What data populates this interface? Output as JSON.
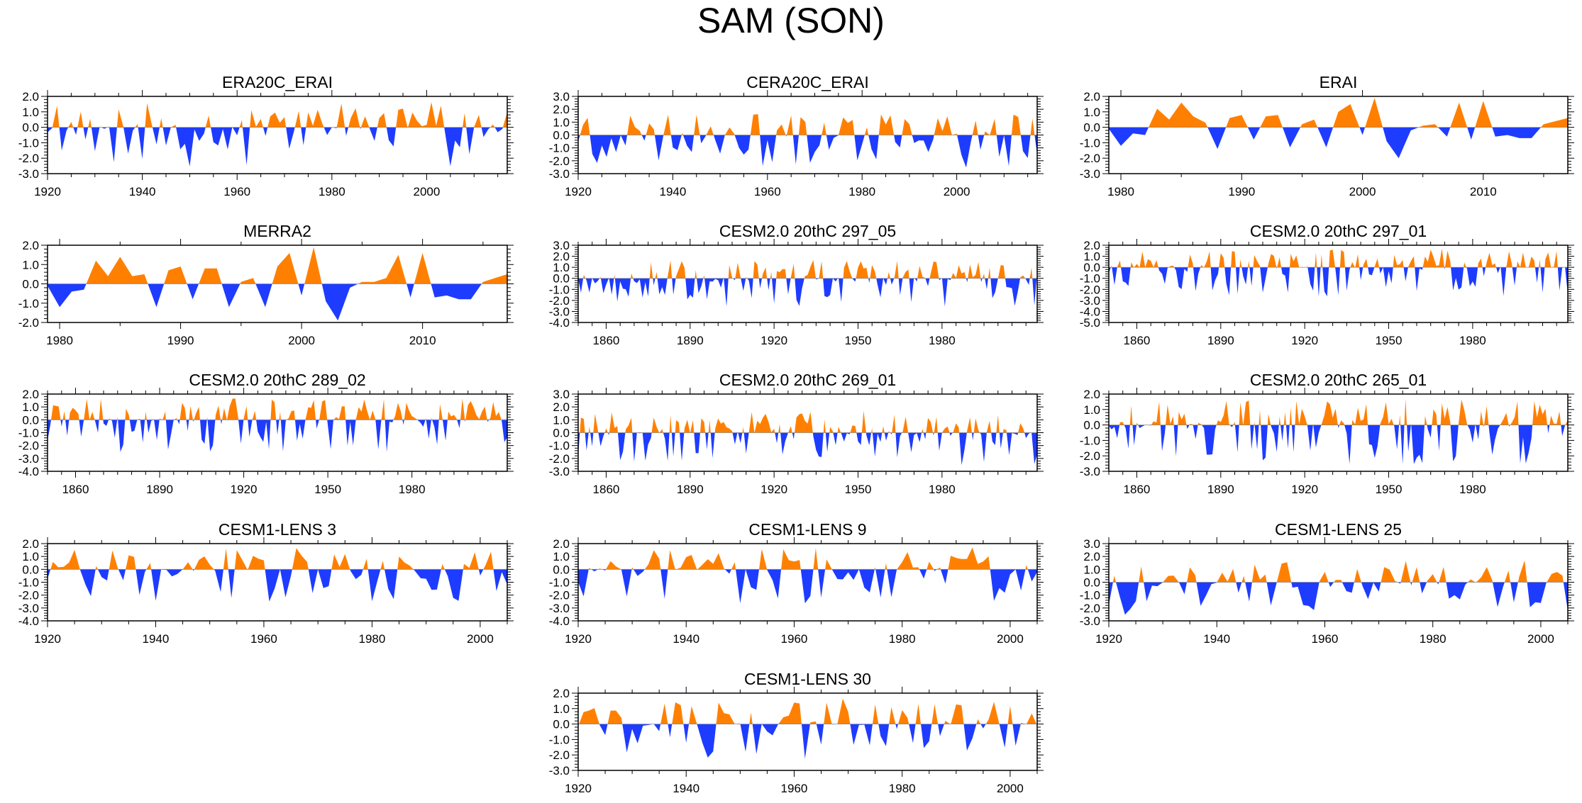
{
  "title": "SAM (SON)",
  "colors": {
    "positive": "#FF8000",
    "negative": "#1E3CFF",
    "frame": "#000000"
  },
  "chart_data": [
    {
      "type": "area",
      "title": "ERA20C_ERAI",
      "xlim": [
        1920,
        2017
      ],
      "ylim": [
        -3.0,
        2.0
      ],
      "yticks": [
        2.0,
        1.0,
        0.0,
        -1.0,
        -2.0,
        -3.0
      ],
      "xticks": [
        1920,
        1940,
        1960,
        1980,
        2000
      ],
      "seed": 11
    },
    {
      "type": "area",
      "title": "CERA20C_ERAI",
      "xlim": [
        1920,
        2017
      ],
      "ylim": [
        -3.0,
        3.0
      ],
      "yticks": [
        3.0,
        2.0,
        1.0,
        0.0,
        -1.0,
        -2.0,
        -3.0
      ],
      "xticks": [
        1920,
        1940,
        1960,
        1980,
        2000
      ],
      "seed": 23
    },
    {
      "type": "area",
      "title": "ERAI",
      "xlim": [
        1979,
        2017
      ],
      "ylim": [
        -3.0,
        2.0
      ],
      "yticks": [
        2.0,
        1.0,
        0.0,
        -1.0,
        -2.0,
        -3.0
      ],
      "xticks": [
        1980,
        1990,
        2000,
        2010
      ],
      "seed": 37,
      "x": [
        1979,
        1980,
        1981,
        1982,
        1983,
        1984,
        1985,
        1986,
        1987,
        1988,
        1989,
        1990,
        1991,
        1992,
        1993,
        1994,
        1995,
        1996,
        1997,
        1998,
        1999,
        2000,
        2001,
        2002,
        2003,
        2004,
        2005,
        2006,
        2007,
        2008,
        2009,
        2010,
        2011,
        2012,
        2013,
        2014,
        2015,
        2016,
        2017
      ],
      "values": [
        -0.1,
        -1.2,
        -0.4,
        -0.5,
        1.2,
        0.5,
        1.6,
        0.7,
        0.3,
        -1.4,
        0.6,
        0.8,
        -0.8,
        0.7,
        0.8,
        -1.3,
        0.2,
        0.5,
        -1.3,
        1.0,
        1.5,
        -0.5,
        1.9,
        -0.9,
        -2.0,
        -0.2,
        0.1,
        0.2,
        -0.6,
        1.6,
        -0.8,
        1.7,
        -0.6,
        -0.5,
        -0.7,
        -0.7,
        0.2,
        0.4,
        0.6
      ]
    },
    {
      "type": "area",
      "title": "MERRA2",
      "xlim": [
        1979,
        2017
      ],
      "ylim": [
        -2.0,
        2.0
      ],
      "yticks": [
        2.0,
        1.0,
        0.0,
        -1.0,
        -2.0
      ],
      "xticks": [
        1980,
        1990,
        2000,
        2010
      ],
      "seed": 41,
      "x": [
        1979,
        1980,
        1981,
        1982,
        1983,
        1984,
        1985,
        1986,
        1987,
        1988,
        1989,
        1990,
        1991,
        1992,
        1993,
        1994,
        1995,
        1996,
        1997,
        1998,
        1999,
        2000,
        2001,
        2002,
        2003,
        2004,
        2005,
        2006,
        2007,
        2008,
        2009,
        2010,
        2011,
        2012,
        2013,
        2014,
        2015,
        2016,
        2017
      ],
      "values": [
        -0.1,
        -1.2,
        -0.4,
        -0.3,
        1.2,
        0.4,
        1.4,
        0.4,
        0.5,
        -1.2,
        0.7,
        0.9,
        -0.8,
        0.8,
        0.8,
        -1.2,
        0.1,
        0.3,
        -1.2,
        0.9,
        1.6,
        -0.6,
        1.9,
        -0.9,
        -1.9,
        -0.2,
        0.1,
        0.1,
        0.3,
        1.5,
        -0.7,
        1.6,
        -0.7,
        -0.6,
        -0.8,
        -0.8,
        0.1,
        0.3,
        0.5
      ]
    },
    {
      "type": "area",
      "title": "CESM2.0 20thC 297_05",
      "xlim": [
        1850,
        2014
      ],
      "ylim": [
        -4.0,
        3.0
      ],
      "yticks": [
        3.0,
        2.0,
        1.0,
        0.0,
        -1.0,
        -2.0,
        -3.0,
        -4.0
      ],
      "xticks": [
        1860,
        1890,
        1920,
        1950,
        1980
      ],
      "seed": 53
    },
    {
      "type": "area",
      "title": "CESM2.0 20thC 297_01",
      "xlim": [
        1850,
        2014
      ],
      "ylim": [
        -5.0,
        2.0
      ],
      "yticks": [
        2.0,
        1.0,
        0.0,
        -1.0,
        -2.0,
        -3.0,
        -4.0,
        -5.0
      ],
      "xticks": [
        1860,
        1890,
        1920,
        1950,
        1980
      ],
      "seed": 67
    },
    {
      "type": "area",
      "title": "CESM2.0 20thC 289_02",
      "xlim": [
        1850,
        2014
      ],
      "ylim": [
        -4.0,
        2.0
      ],
      "yticks": [
        2.0,
        1.0,
        0.0,
        -1.0,
        -2.0,
        -3.0,
        -4.0
      ],
      "xticks": [
        1860,
        1890,
        1920,
        1950,
        1980
      ],
      "seed": 71
    },
    {
      "type": "area",
      "title": "CESM2.0 20thC 269_01",
      "xlim": [
        1850,
        2014
      ],
      "ylim": [
        -3.0,
        3.0
      ],
      "yticks": [
        3.0,
        2.0,
        1.0,
        0.0,
        -1.0,
        -2.0,
        -3.0
      ],
      "xticks": [
        1860,
        1890,
        1920,
        1950,
        1980
      ],
      "seed": 83
    },
    {
      "type": "area",
      "title": "CESM2.0 20thC 265_01",
      "xlim": [
        1850,
        2014
      ],
      "ylim": [
        -3.0,
        2.0
      ],
      "yticks": [
        2.0,
        1.0,
        0.0,
        -1.0,
        -2.0,
        -3.0
      ],
      "xticks": [
        1860,
        1890,
        1920,
        1950,
        1980
      ],
      "seed": 97
    },
    {
      "type": "area",
      "title": "CESM1-LENS 3",
      "xlim": [
        1920,
        2005
      ],
      "ylim": [
        -4.0,
        2.0
      ],
      "yticks": [
        2.0,
        1.0,
        0.0,
        -1.0,
        -2.0,
        -3.0,
        -4.0
      ],
      "xticks": [
        1920,
        1940,
        1960,
        1980,
        2000
      ],
      "seed": 101
    },
    {
      "type": "area",
      "title": "CESM1-LENS 9",
      "xlim": [
        1920,
        2005
      ],
      "ylim": [
        -4.0,
        2.0
      ],
      "yticks": [
        2.0,
        1.0,
        0.0,
        -1.0,
        -2.0,
        -3.0,
        -4.0
      ],
      "xticks": [
        1920,
        1940,
        1960,
        1980,
        2000
      ],
      "seed": 113
    },
    {
      "type": "area",
      "title": "CESM1-LENS 25",
      "xlim": [
        1920,
        2005
      ],
      "ylim": [
        -3.0,
        3.0
      ],
      "yticks": [
        3.0,
        2.0,
        1.0,
        0.0,
        -1.0,
        -2.0,
        -3.0
      ],
      "xticks": [
        1920,
        1940,
        1960,
        1980,
        2000
      ],
      "seed": 127
    },
    {
      "type": "area",
      "title": "CESM1-LENS 30",
      "xlim": [
        1920,
        2005
      ],
      "ylim": [
        -3.0,
        2.0
      ],
      "yticks": [
        2.0,
        1.0,
        0.0,
        -1.0,
        -2.0,
        -3.0
      ],
      "xticks": [
        1920,
        1940,
        1960,
        1980,
        2000
      ],
      "seed": 131
    }
  ]
}
